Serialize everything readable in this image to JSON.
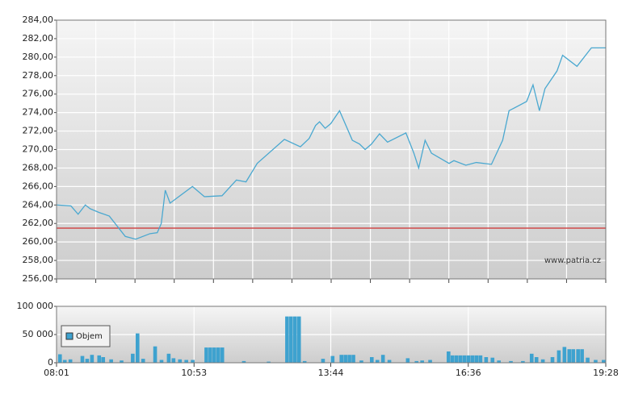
{
  "chart_data": [
    {
      "type": "line",
      "x": [
        "08:01",
        "08:19",
        "08:28",
        "08:37",
        "08:43",
        "08:54",
        "09:07",
        "09:27",
        "09:40",
        "09:58",
        "10:07",
        "10:12",
        "10:17",
        "10:23",
        "10:51",
        "11:06",
        "11:28",
        "11:46",
        "11:58",
        "12:12",
        "12:46",
        "13:06",
        "13:17",
        "13:25",
        "13:30",
        "13:37",
        "13:44",
        "13:55",
        "14:11",
        "14:20",
        "14:27",
        "14:35",
        "14:45",
        "14:55",
        "15:18",
        "15:28",
        "15:34",
        "15:42",
        "15:50",
        "16:12",
        "16:18",
        "16:33",
        "16:46",
        "17:05",
        "17:19",
        "17:27",
        "17:49",
        "17:57",
        "18:05",
        "18:12",
        "18:27",
        "18:34",
        "18:52",
        "19:10",
        "19:28"
      ],
      "values": [
        264.0,
        263.9,
        263.0,
        264.0,
        263.6,
        263.2,
        262.8,
        260.6,
        260.3,
        260.9,
        261.0,
        262.0,
        265.6,
        264.2,
        266.0,
        264.9,
        265.0,
        266.7,
        266.5,
        268.5,
        271.1,
        270.3,
        271.2,
        272.6,
        273.0,
        272.3,
        272.8,
        274.2,
        271.0,
        270.6,
        270.0,
        270.6,
        271.7,
        270.8,
        271.8,
        269.6,
        268.0,
        271.0,
        269.6,
        268.5,
        268.8,
        268.3,
        268.6,
        268.4,
        271.0,
        274.2,
        275.2,
        277.0,
        274.2,
        276.6,
        278.5,
        280.2,
        279.0,
        281.0,
        281.0
      ],
      "color": "#4aa8d0",
      "reference_value": 261.5,
      "reference_color": "#d04a4a",
      "ylim": [
        256,
        284
      ],
      "yticks": [
        {
          "value": 256,
          "label": "256,00"
        },
        {
          "value": 258,
          "label": "258,00"
        },
        {
          "value": 260,
          "label": "260,00"
        },
        {
          "value": 262,
          "label": "262,00"
        },
        {
          "value": 264,
          "label": "264,00"
        },
        {
          "value": 266,
          "label": "266,00"
        },
        {
          "value": 268,
          "label": "268,00"
        },
        {
          "value": 270,
          "label": "270,00"
        },
        {
          "value": 272,
          "label": "272,00"
        },
        {
          "value": 274,
          "label": "274,00"
        },
        {
          "value": 276,
          "label": "276,00"
        },
        {
          "value": 278,
          "label": "278,00"
        },
        {
          "value": 280,
          "label": "280,00"
        },
        {
          "value": 282,
          "label": "282,00"
        },
        {
          "value": 284,
          "label": "284,00"
        }
      ],
      "watermark": "www.patria.cz",
      "grid": true
    },
    {
      "type": "bar",
      "x": [
        "08:03",
        "08:09",
        "08:16",
        "08:31",
        "08:37",
        "08:43",
        "08:52",
        "08:57",
        "09:07",
        "09:20",
        "09:34",
        "09:40",
        "09:47",
        "10:02",
        "10:10",
        "10:19",
        "10:25",
        "10:33",
        "10:41",
        "10:49",
        "11:06",
        "11:11",
        "11:16",
        "11:21",
        "11:26",
        "11:53",
        "12:24",
        "12:47",
        "12:52",
        "12:57",
        "13:02",
        "13:09",
        "13:32",
        "13:44",
        "13:55",
        "14:00",
        "14:05",
        "14:10",
        "14:20",
        "14:33",
        "14:40",
        "14:47",
        "14:55",
        "15:18",
        "15:29",
        "15:36",
        "15:46",
        "16:09",
        "16:14",
        "16:19",
        "16:24",
        "16:29",
        "16:34",
        "16:39",
        "16:44",
        "16:49",
        "16:56",
        "17:04",
        "17:12",
        "17:27",
        "17:42",
        "17:53",
        "17:59",
        "18:07",
        "18:19",
        "18:27",
        "18:34",
        "18:40",
        "18:45",
        "18:51",
        "18:56",
        "19:03",
        "19:13",
        "19:23"
      ],
      "series": [
        {
          "name": "Objem",
          "color": "#3ea2cf",
          "values": [
            15000,
            5000,
            6000,
            12000,
            7000,
            14000,
            13000,
            10000,
            6000,
            4000,
            16000,
            52000,
            7000,
            29000,
            5000,
            16000,
            8000,
            6000,
            5000,
            5000,
            27000,
            27000,
            27000,
            27000,
            27000,
            3000,
            2000,
            82000,
            82000,
            82000,
            82000,
            3000,
            7000,
            12000,
            14000,
            14000,
            14000,
            14000,
            4000,
            10000,
            5000,
            14000,
            5000,
            8000,
            3000,
            4000,
            5000,
            20000,
            13000,
            13000,
            13000,
            13000,
            13000,
            13000,
            13000,
            13000,
            10000,
            9000,
            4000,
            3000,
            3000,
            16000,
            10000,
            6000,
            10000,
            22000,
            28000,
            24000,
            24000,
            24000,
            24000,
            9000,
            5000,
            5000
          ]
        }
      ],
      "xlim": [
        "08:01",
        "19:28"
      ],
      "xticks": [
        "08:01",
        "10:53",
        "13:44",
        "16:36",
        "19:28"
      ],
      "ylim": [
        0,
        100000
      ],
      "yticks": [
        0,
        {
          "value": 50000,
          "label": "50 000"
        },
        {
          "value": 100000,
          "label": "100 000"
        }
      ],
      "legend": "upper-left",
      "grid": true
    }
  ]
}
